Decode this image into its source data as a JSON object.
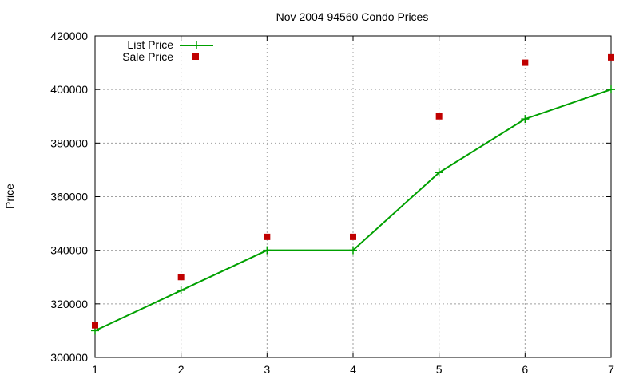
{
  "chart_data": {
    "type": "line",
    "title": "Nov 2004 94560 Condo Prices",
    "xlabel": "",
    "ylabel": "Price",
    "x": [
      1,
      2,
      3,
      4,
      5,
      6,
      7
    ],
    "xlim": [
      1,
      7
    ],
    "ylim": [
      300000,
      420000
    ],
    "xticks": [
      "1",
      "2",
      "3",
      "4",
      "5",
      "6",
      "7"
    ],
    "yticks": [
      "300000",
      "320000",
      "340000",
      "360000",
      "380000",
      "400000",
      "420000"
    ],
    "grid": true,
    "legend_position": "top-left",
    "series": [
      {
        "name": "List Price",
        "style": "line-with-plus-markers",
        "color": "#00a000",
        "values": [
          310000,
          325000,
          340000,
          340000,
          369000,
          389000,
          400000
        ]
      },
      {
        "name": "Sale Price",
        "style": "square-markers",
        "color": "#c00000",
        "values": [
          312000,
          330000,
          345000,
          345000,
          390000,
          410000,
          412000
        ]
      }
    ]
  }
}
